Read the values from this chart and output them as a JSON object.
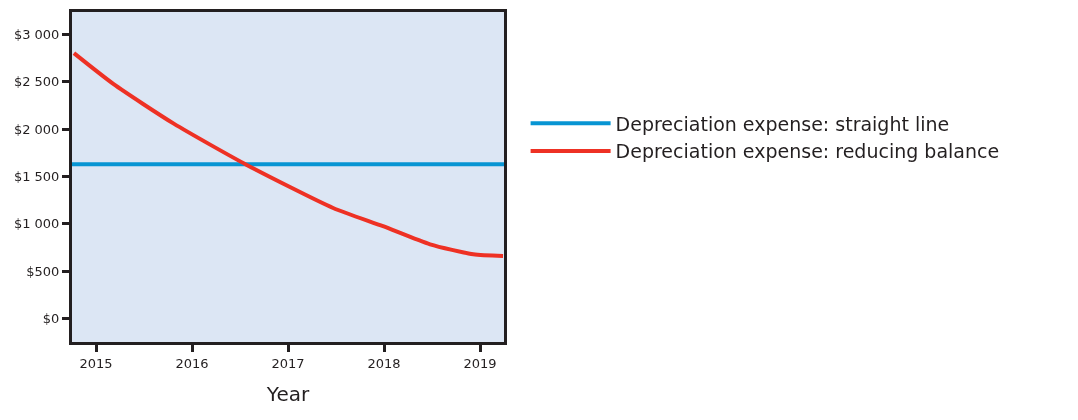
{
  "chart_data": {
    "type": "line",
    "xlabel": "Year",
    "series": [
      {
        "name": "Depreciation expense: straight line",
        "color": "#0795d3",
        "x": [
          2014.75,
          2019.25
        ],
        "values": [
          1630,
          1630
        ]
      },
      {
        "name": "Depreciation expense: reducing balance",
        "color": "#ee3124",
        "x": [
          2014.77,
          2015.18,
          2015.81,
          2016.57,
          2017.47,
          2017.99,
          2018.48,
          2018.93,
          2019.24
        ],
        "values": [
          2800,
          2476,
          2057,
          1622,
          1168,
          976,
          785,
          680,
          662
        ]
      }
    ],
    "xlim": [
      2014.75,
      2019.25
    ],
    "xticks": [
      2015,
      2016,
      2017,
      2018,
      2019
    ],
    "ylim": [
      -245,
      3234
    ],
    "yticks": [
      {
        "value": 0,
        "label": "$0"
      },
      {
        "value": 500,
        "label": "$500"
      },
      {
        "value": 1000,
        "label": "$1 000"
      },
      {
        "value": 1500,
        "label": "$1 500"
      },
      {
        "value": 2000,
        "label": "$2 000"
      },
      {
        "value": 2500,
        "label": "$2 500"
      },
      {
        "value": 3000,
        "label": "$3 000"
      }
    ],
    "grid": false,
    "legend": "right",
    "marker": "none",
    "line_style": "solid"
  }
}
